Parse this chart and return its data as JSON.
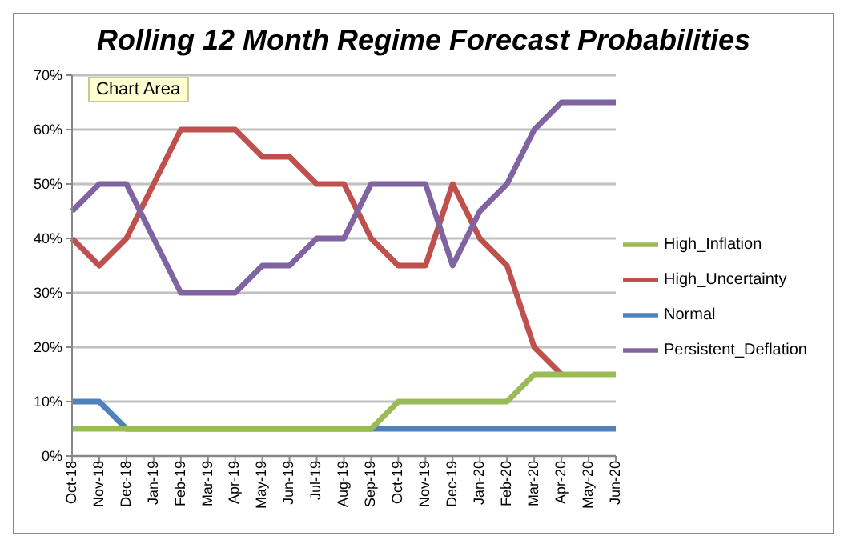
{
  "chart_data": {
    "type": "line",
    "title": "Rolling 12 Month Regime Forecast Probabilities",
    "categories": [
      "Oct-18",
      "Nov-18",
      "Dec-18",
      "Jan-19",
      "Feb-19",
      "Mar-19",
      "Apr-19",
      "May-19",
      "Jun-19",
      "Jul-19",
      "Aug-19",
      "Sep-19",
      "Oct-19",
      "Nov-19",
      "Dec-19",
      "Jan-20",
      "Feb-20",
      "Mar-20",
      "Apr-20",
      "May-20",
      "Jun-20"
    ],
    "series": [
      {
        "name": "Normal",
        "color": "#4f81bd",
        "values": [
          10,
          10,
          5,
          5,
          5,
          5,
          5,
          5,
          5,
          5,
          5,
          5,
          5,
          5,
          5,
          5,
          5,
          5,
          5,
          5,
          5
        ]
      },
      {
        "name": "High_Uncertainty",
        "color": "#c0504d",
        "values": [
          40,
          35,
          40,
          50,
          60,
          60,
          60,
          55,
          55,
          50,
          50,
          40,
          35,
          35,
          50,
          40,
          35,
          20,
          15,
          null,
          null
        ]
      },
      {
        "name": "High_Inflation",
        "color": "#9bbb59",
        "values": [
          5,
          5,
          5,
          5,
          5,
          5,
          5,
          5,
          5,
          5,
          5,
          5,
          10,
          10,
          10,
          10,
          10,
          15,
          15,
          15,
          15
        ]
      },
      {
        "name": "Persistent_Deflation",
        "color": "#8064a2",
        "values": [
          45,
          50,
          50,
          40,
          30,
          30,
          30,
          35,
          35,
          40,
          40,
          50,
          50,
          50,
          35,
          45,
          50,
          60,
          65,
          65,
          65
        ]
      }
    ],
    "ylim": [
      0,
      70
    ],
    "yticks": [
      {
        "value": 0,
        "label": "0%"
      },
      {
        "value": 10,
        "label": "10%"
      },
      {
        "value": 20,
        "label": "20%"
      },
      {
        "value": 30,
        "label": "30%"
      },
      {
        "value": 40,
        "label": "40%"
      },
      {
        "value": 50,
        "label": "50%"
      },
      {
        "value": 60,
        "label": "60%"
      },
      {
        "value": 70,
        "label": "70%"
      }
    ],
    "grid": "y",
    "legend": "right",
    "marker": "none",
    "line_style": "solid",
    "annotations": [
      "Chart Area"
    ]
  }
}
